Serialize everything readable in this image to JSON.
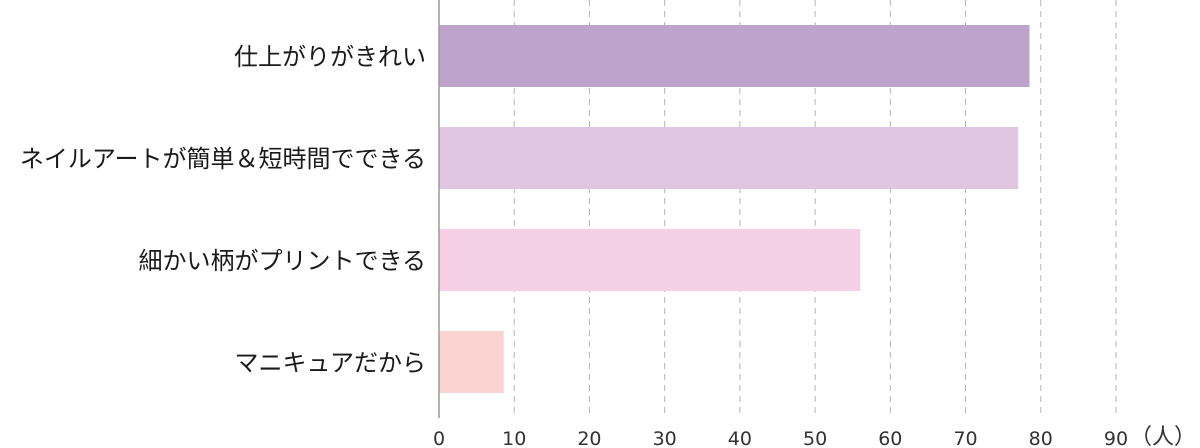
{
  "chart_data": {
    "type": "bar",
    "orientation": "horizontal",
    "categories": [
      "仕上がりがきれい",
      "ネイルアートが簡単＆短時間でできる",
      "細かい柄がプリントできる",
      "マニキュアだから"
    ],
    "values": [
      78.5,
      77,
      56,
      8.6
    ],
    "colors": [
      "#bea3cc",
      "#e1c6e2",
      "#f5cfe6",
      "#f9d3cf"
    ],
    "xlim": [
      0,
      90
    ],
    "xticks": [
      0,
      10,
      20,
      30,
      40,
      50,
      60,
      70,
      80,
      90
    ],
    "unit": "（人）",
    "grid": true,
    "title": "",
    "xlabel": "",
    "ylabel": ""
  }
}
